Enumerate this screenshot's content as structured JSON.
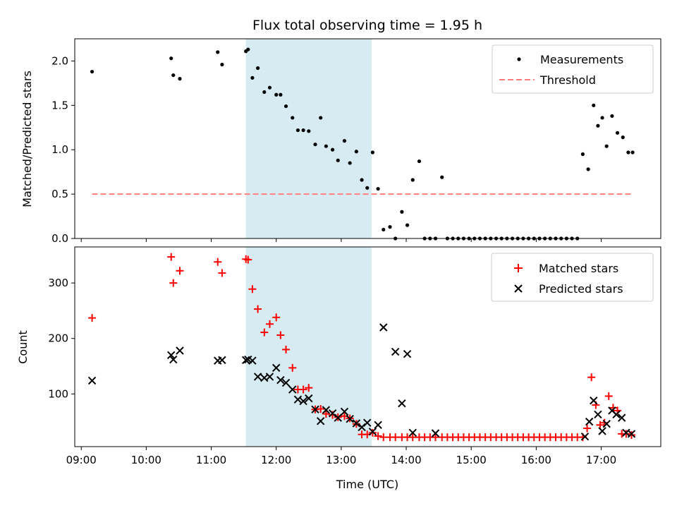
{
  "chart_data": [
    {
      "type": "scatter",
      "title": "Flux total observing time = 1.95 h",
      "xlabel": "",
      "ylabel": "Matched/Predicted stars",
      "xlim": [
        "08:54",
        "17:55"
      ],
      "ylim": [
        0,
        2.25
      ],
      "yticks": [
        "0.0",
        "0.5",
        "1.0",
        "1.5",
        "2.0"
      ],
      "ytick_values": [
        0,
        0.5,
        1.0,
        1.5,
        2.0
      ],
      "shaded_span": {
        "x_start": "11:32",
        "x_end": "13:28",
        "color": "#add8e6"
      },
      "legend_position": "top-right",
      "series": [
        {
          "name": "Measurements",
          "marker": "dot",
          "color": "#000000",
          "x": [
            "09:10",
            "10:23",
            "10:25",
            "10:31",
            "11:06",
            "11:10",
            "11:32",
            "11:34",
            "11:38",
            "11:43",
            "11:49",
            "11:54",
            "12:00",
            "12:04",
            "12:09",
            "12:15",
            "12:20",
            "12:25",
            "12:30",
            "12:36",
            "12:41",
            "12:46",
            "12:52",
            "12:57",
            "13:03",
            "13:08",
            "13:14",
            "13:19",
            "13:24",
            "13:29",
            "13:34",
            "13:39",
            "13:45",
            "13:50",
            "13:56",
            "14:01",
            "14:06",
            "14:12",
            "14:17",
            "14:22",
            "14:27",
            "14:33",
            "14:38",
            "14:43",
            "14:48",
            "14:53",
            "14:58",
            "15:03",
            "15:08",
            "15:13",
            "15:18",
            "15:23",
            "15:28",
            "15:33",
            "15:38",
            "15:43",
            "15:48",
            "15:53",
            "15:58",
            "16:03",
            "16:08",
            "16:13",
            "16:18",
            "16:23",
            "16:28",
            "16:33",
            "16:38",
            "16:43",
            "16:48",
            "16:53",
            "16:57",
            "17:01",
            "17:05",
            "17:10",
            "17:15",
            "17:20",
            "17:25",
            "17:29"
          ],
          "y": [
            1.88,
            2.03,
            1.84,
            1.8,
            2.1,
            1.96,
            2.11,
            2.13,
            1.81,
            1.92,
            1.65,
            1.7,
            1.62,
            1.62,
            1.49,
            1.36,
            1.22,
            1.22,
            1.21,
            1.06,
            1.36,
            1.04,
            1.0,
            0.88,
            1.1,
            0.85,
            0.98,
            0.66,
            0.57,
            0.97,
            0.56,
            0.1,
            0.13,
            0.0,
            0.3,
            0.15,
            0.66,
            0.87,
            0.0,
            0.0,
            0.0,
            0.69,
            0.0,
            0.0,
            0.0,
            0.0,
            0.0,
            0.0,
            0.0,
            0.0,
            0.0,
            0.0,
            0.0,
            0.0,
            0.0,
            0.0,
            0.0,
            0.0,
            0.0,
            0.0,
            0.0,
            0.0,
            0.0,
            0.0,
            0.0,
            0.0,
            0.0,
            0.95,
            0.78,
            1.5,
            1.27,
            1.36,
            1.04,
            1.38,
            1.19,
            1.14,
            0.97,
            0.97
          ]
        },
        {
          "name": "Threshold",
          "marker": "dashed-line",
          "color": "#ff7f7f",
          "x": [
            "09:10",
            "17:30"
          ],
          "y": [
            0.5,
            0.5
          ]
        }
      ]
    },
    {
      "type": "scatter",
      "title": "",
      "xlabel": "Time (UTC)",
      "ylabel": "Count",
      "xlim": [
        "08:54",
        "17:55"
      ],
      "ylim": [
        5,
        365
      ],
      "xticks": [
        "09:00",
        "10:00",
        "11:00",
        "12:00",
        "13:00",
        "14:00",
        "15:00",
        "16:00",
        "17:00"
      ],
      "yticks": [
        "100",
        "200",
        "300"
      ],
      "ytick_values": [
        100,
        200,
        300
      ],
      "shaded_span": {
        "x_start": "11:32",
        "x_end": "13:28",
        "color": "#add8e6"
      },
      "legend_position": "top-right",
      "series": [
        {
          "name": "Matched stars",
          "marker": "plus",
          "color": "#ff0000",
          "x": [
            "09:10",
            "10:23",
            "10:25",
            "10:31",
            "11:06",
            "11:10",
            "11:32",
            "11:34",
            "11:38",
            "11:43",
            "11:49",
            "11:54",
            "12:00",
            "12:04",
            "12:09",
            "12:15",
            "12:20",
            "12:25",
            "12:30",
            "12:36",
            "12:41",
            "12:46",
            "12:52",
            "12:57",
            "13:03",
            "13:08",
            "13:14",
            "13:19",
            "13:24",
            "13:29",
            "13:34",
            "13:39",
            "13:45",
            "13:50",
            "13:56",
            "14:01",
            "14:06",
            "14:12",
            "14:17",
            "14:22",
            "14:27",
            "14:33",
            "14:38",
            "14:43",
            "14:48",
            "14:53",
            "14:58",
            "15:03",
            "15:08",
            "15:13",
            "15:18",
            "15:23",
            "15:28",
            "15:33",
            "15:38",
            "15:43",
            "15:48",
            "15:53",
            "15:58",
            "16:03",
            "16:08",
            "16:13",
            "16:18",
            "16:23",
            "16:28",
            "16:33",
            "16:38",
            "16:43",
            "16:47",
            "16:51",
            "16:55",
            "16:59",
            "17:03",
            "17:07",
            "17:11",
            "17:15",
            "17:19",
            "17:23",
            "17:28"
          ],
          "y": [
            237,
            347,
            300,
            322,
            338,
            318,
            343,
            342,
            289,
            253,
            211,
            226,
            238,
            206,
            180,
            147,
            108,
            108,
            111,
            72,
            73,
            64,
            62,
            58,
            60,
            56,
            46,
            27,
            27,
            30,
            24,
            22,
            22,
            22,
            22,
            22,
            22,
            22,
            22,
            22,
            22,
            22,
            22,
            22,
            22,
            22,
            22,
            22,
            22,
            22,
            22,
            22,
            22,
            22,
            22,
            22,
            22,
            22,
            22,
            22,
            22,
            22,
            22,
            22,
            22,
            22,
            22,
            22,
            38,
            130,
            80,
            44,
            48,
            96,
            75,
            70,
            28,
            28,
            26
          ]
        },
        {
          "name": "Predicted stars",
          "marker": "x",
          "color": "#000000",
          "x": [
            "09:10",
            "10:23",
            "10:25",
            "10:31",
            "11:06",
            "11:10",
            "11:32",
            "11:34",
            "11:38",
            "11:43",
            "11:49",
            "11:54",
            "12:00",
            "12:04",
            "12:09",
            "12:15",
            "12:20",
            "12:25",
            "12:30",
            "12:36",
            "12:41",
            "12:46",
            "12:52",
            "12:57",
            "13:03",
            "13:08",
            "13:14",
            "13:19",
            "13:24",
            "13:29",
            "13:34",
            "13:39",
            "13:50",
            "13:56",
            "14:01",
            "14:06",
            "14:27",
            "16:45",
            "16:49",
            "16:53",
            "16:57",
            "17:01",
            "17:05",
            "17:10",
            "17:14",
            "17:19",
            "17:23",
            "17:28"
          ],
          "y": [
            124,
            170,
            162,
            178,
            160,
            161,
            161,
            162,
            160,
            131,
            129,
            131,
            147,
            125,
            120,
            108,
            90,
            87,
            92,
            72,
            51,
            71,
            65,
            57,
            68,
            55,
            47,
            40,
            48,
            32,
            44,
            220,
            176,
            83,
            172,
            30,
            29,
            23,
            50,
            88,
            63,
            33,
            46,
            70,
            63,
            57,
            30,
            28
          ]
        }
      ]
    }
  ]
}
